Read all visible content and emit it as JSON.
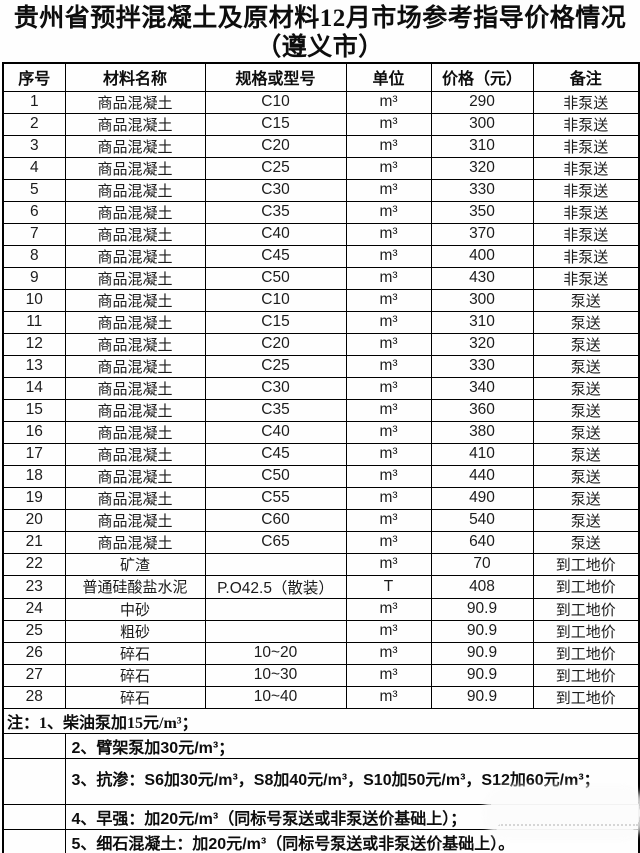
{
  "title": {
    "line1": "贵州省预拌混凝土及原材料12月市场参考指导价格情况",
    "line2": "（遵义市）"
  },
  "table": {
    "headers": [
      "序号",
      "材料名称",
      "规格或型号",
      "单位",
      "价格（元）",
      "备注"
    ],
    "rows": [
      [
        "1",
        "商品混凝土",
        "C10",
        "m³",
        "290",
        "非泵送"
      ],
      [
        "2",
        "商品混凝土",
        "C15",
        "m³",
        "300",
        "非泵送"
      ],
      [
        "3",
        "商品混凝土",
        "C20",
        "m³",
        "310",
        "非泵送"
      ],
      [
        "4",
        "商品混凝土",
        "C25",
        "m³",
        "320",
        "非泵送"
      ],
      [
        "5",
        "商品混凝土",
        "C30",
        "m³",
        "330",
        "非泵送"
      ],
      [
        "6",
        "商品混凝土",
        "C35",
        "m³",
        "350",
        "非泵送"
      ],
      [
        "7",
        "商品混凝土",
        "C40",
        "m³",
        "370",
        "非泵送"
      ],
      [
        "8",
        "商品混凝土",
        "C45",
        "m³",
        "400",
        "非泵送"
      ],
      [
        "9",
        "商品混凝土",
        "C50",
        "m³",
        "430",
        "非泵送"
      ],
      [
        "10",
        "商品混凝土",
        "C10",
        "m³",
        "300",
        "泵送"
      ],
      [
        "11",
        "商品混凝土",
        "C15",
        "m³",
        "310",
        "泵送"
      ],
      [
        "12",
        "商品混凝土",
        "C20",
        "m³",
        "320",
        "泵送"
      ],
      [
        "13",
        "商品混凝土",
        "C25",
        "m³",
        "330",
        "泵送"
      ],
      [
        "14",
        "商品混凝土",
        "C30",
        "m³",
        "340",
        "泵送"
      ],
      [
        "15",
        "商品混凝土",
        "C35",
        "m³",
        "360",
        "泵送"
      ],
      [
        "16",
        "商品混凝土",
        "C40",
        "m³",
        "380",
        "泵送"
      ],
      [
        "17",
        "商品混凝土",
        "C45",
        "m³",
        "410",
        "泵送"
      ],
      [
        "18",
        "商品混凝土",
        "C50",
        "m³",
        "440",
        "泵送"
      ],
      [
        "19",
        "商品混凝土",
        "C55",
        "m³",
        "490",
        "泵送"
      ],
      [
        "20",
        "商品混凝土",
        "C60",
        "m³",
        "540",
        "泵送"
      ],
      [
        "21",
        "商品混凝土",
        "C65",
        "m³",
        "640",
        "泵送"
      ],
      [
        "22",
        "矿渣",
        "",
        "m³",
        "70",
        "到工地价"
      ],
      [
        "23",
        "普通硅酸盐水泥",
        "P.O42.5（散装）",
        "T",
        "408",
        "到工地价"
      ],
      [
        "24",
        "中砂",
        "",
        "m³",
        "90.9",
        "到工地价"
      ],
      [
        "25",
        "粗砂",
        "",
        "m³",
        "90.9",
        "到工地价"
      ],
      [
        "26",
        "碎石",
        "10~20",
        "m³",
        "90.9",
        "到工地价"
      ],
      [
        "27",
        "碎石",
        "10~30",
        "m³",
        "90.9",
        "到工地价"
      ],
      [
        "28",
        "碎石",
        "10~40",
        "m³",
        "90.9",
        "到工地价"
      ]
    ]
  },
  "notes": {
    "lines": [
      "注：1、柴油泵加15元/m³；",
      "2、臂架泵加30元/m³；",
      "3、抗渗：S6加30元/m³，S8加40元/m³，S10加50元/m³，S12加60元/m³；",
      "4、早强：加20元/m³（同标号泵送或非泵送价基础上）；",
      "5、细石混凝土：加20元/m³（同标号泵送或非泵送价基础上）。"
    ]
  }
}
